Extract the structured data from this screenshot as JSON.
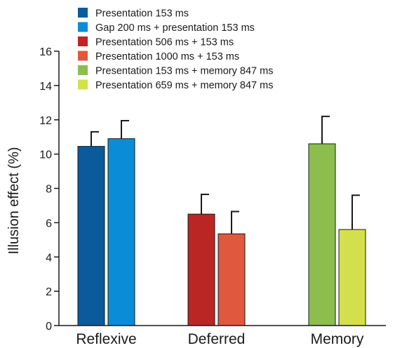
{
  "chart_data": {
    "type": "bar",
    "title": "",
    "xlabel": "",
    "ylabel": "Illusion effect (%)",
    "ylim": [
      0,
      16
    ],
    "yticks": [
      0,
      2,
      4,
      6,
      8,
      10,
      12,
      14,
      16
    ],
    "grid": false,
    "legend_position": "top-left",
    "error_bars": "one-sided (upper)",
    "groups": [
      {
        "category": "Reflexive",
        "bars": [
          {
            "series": "Presentation 153 ms",
            "value": 10.45,
            "error": 0.85,
            "color": "#0b5a9c"
          },
          {
            "series": "Gap 200 ms + presentation 153 ms",
            "value": 10.9,
            "error": 1.05,
            "color": "#0a8dd6"
          }
        ]
      },
      {
        "category": "Deferred",
        "bars": [
          {
            "series": "Presentation 506 ms + 153 ms",
            "value": 6.5,
            "error": 1.15,
            "color": "#ba2624"
          },
          {
            "series": "Presentation 1000 ms + 153 ms",
            "value": 5.35,
            "error": 1.3,
            "color": "#e0583d"
          }
        ]
      },
      {
        "category": "Memory",
        "bars": [
          {
            "series": "Presentation 153 ms + memory 847 ms",
            "value": 10.6,
            "error": 1.6,
            "color": "#8cbd4d"
          },
          {
            "series": "Presentation 659 ms + memory 847 ms",
            "value": 5.6,
            "error": 2.0,
            "color": "#d4e04b"
          }
        ]
      }
    ],
    "legend": [
      {
        "label": "Presentation 153 ms",
        "color": "#0b5a9c"
      },
      {
        "label": "Gap 200 ms + presentation 153 ms",
        "color": "#0a8dd6"
      },
      {
        "label": "Presentation 506 ms + 153 ms",
        "color": "#ba2624"
      },
      {
        "label": "Presentation 1000 ms + 153 ms",
        "color": "#e0583d"
      },
      {
        "label": "Presentation 153 ms + memory 847 ms",
        "color": "#8cbd4d"
      },
      {
        "label": "Presentation 659 ms + memory 847 ms",
        "color": "#d4e04b"
      }
    ]
  }
}
